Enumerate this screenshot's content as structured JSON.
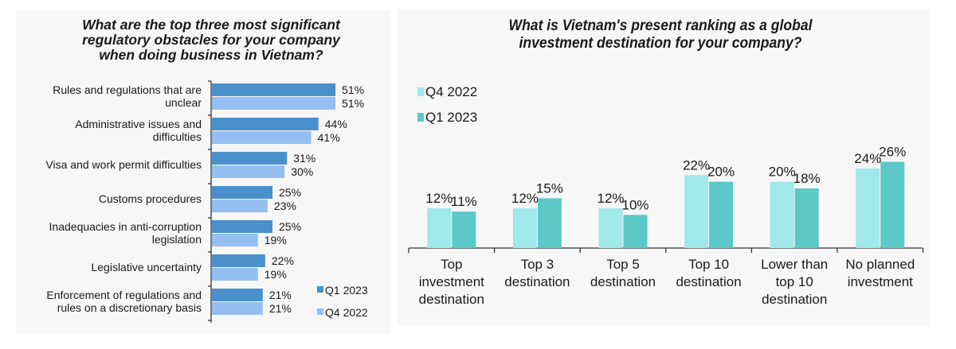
{
  "chart_data": [
    {
      "type": "bar",
      "orientation": "horizontal",
      "title": "What are the top three most significant regulatory obstacles for your company when doing business in Vietnam?",
      "title_lines": [
        "What are the top three most significant",
        "regulatory obstacles for your company",
        "when doing business in Vietnam?"
      ],
      "categories": [
        "Rules and regulations that are unclear",
        "Administrative issues and difficulties",
        "Visa and work permit difficulties",
        "Customs procedures",
        "Inadequacies in anti-corruption legislation",
        "Legislative uncertainty",
        "Enforcement of regulations and rules on a discretionary basis"
      ],
      "category_lines": [
        [
          "Rules and regulations that are",
          "unclear"
        ],
        [
          "Administrative issues and",
          "difficulties"
        ],
        [
          "Visa and work permit difficulties"
        ],
        [
          "Customs procedures"
        ],
        [
          "Inadequacies in anti-corruption",
          "legislation"
        ],
        [
          "Legislative uncertainty"
        ],
        [
          "Enforcement of regulations and",
          "rules on a discretionary basis"
        ]
      ],
      "series": [
        {
          "name": "Q1 2023",
          "color": "#4a90cc",
          "values": [
            51,
            44,
            31,
            25,
            25,
            22,
            21
          ]
        },
        {
          "name": "Q4 2022",
          "color": "#94bff0",
          "values": [
            51,
            41,
            30,
            23,
            19,
            19,
            21
          ]
        }
      ],
      "value_suffix": "%",
      "xlim": [
        0,
        60
      ],
      "legend": [
        {
          "name": "Q1 2023",
          "color": "#4a90cc"
        },
        {
          "name": "Q4 2022",
          "color": "#94bff0"
        }
      ],
      "legend_position": "bottom-right",
      "grid": false
    },
    {
      "type": "bar",
      "orientation": "vertical",
      "title": "What is Vietnam's present ranking as a global investment destination for your company?",
      "title_lines": [
        "What is Vietnam's present ranking as a global",
        "investment destination for your company?"
      ],
      "categories": [
        "Top investment destination",
        "Top 3 destination",
        "Top 5 destination",
        "Top 10 destination",
        "Lower than top 10 destination",
        "No planned investment"
      ],
      "category_lines": [
        [
          "Top",
          "investment",
          "destination"
        ],
        [
          "Top 3",
          "destination"
        ],
        [
          "Top 5",
          "destination"
        ],
        [
          "Top 10",
          "destination"
        ],
        [
          "Lower than",
          "top 10",
          "destination"
        ],
        [
          "No planned",
          "investment"
        ]
      ],
      "series": [
        {
          "name": "Q4 2022",
          "color": "#a0e8ea",
          "values": [
            12,
            12,
            12,
            22,
            20,
            24
          ]
        },
        {
          "name": "Q1 2023",
          "color": "#5cc8c8",
          "values": [
            11,
            15,
            10,
            20,
            18,
            26
          ]
        }
      ],
      "value_suffix": "%",
      "ylim": [
        0,
        30
      ],
      "legend": [
        {
          "name": "Q4 2022",
          "color": "#a0e8ea"
        },
        {
          "name": "Q1 2023",
          "color": "#5cc8c8"
        }
      ],
      "legend_position": "top-left",
      "grid": false
    }
  ]
}
